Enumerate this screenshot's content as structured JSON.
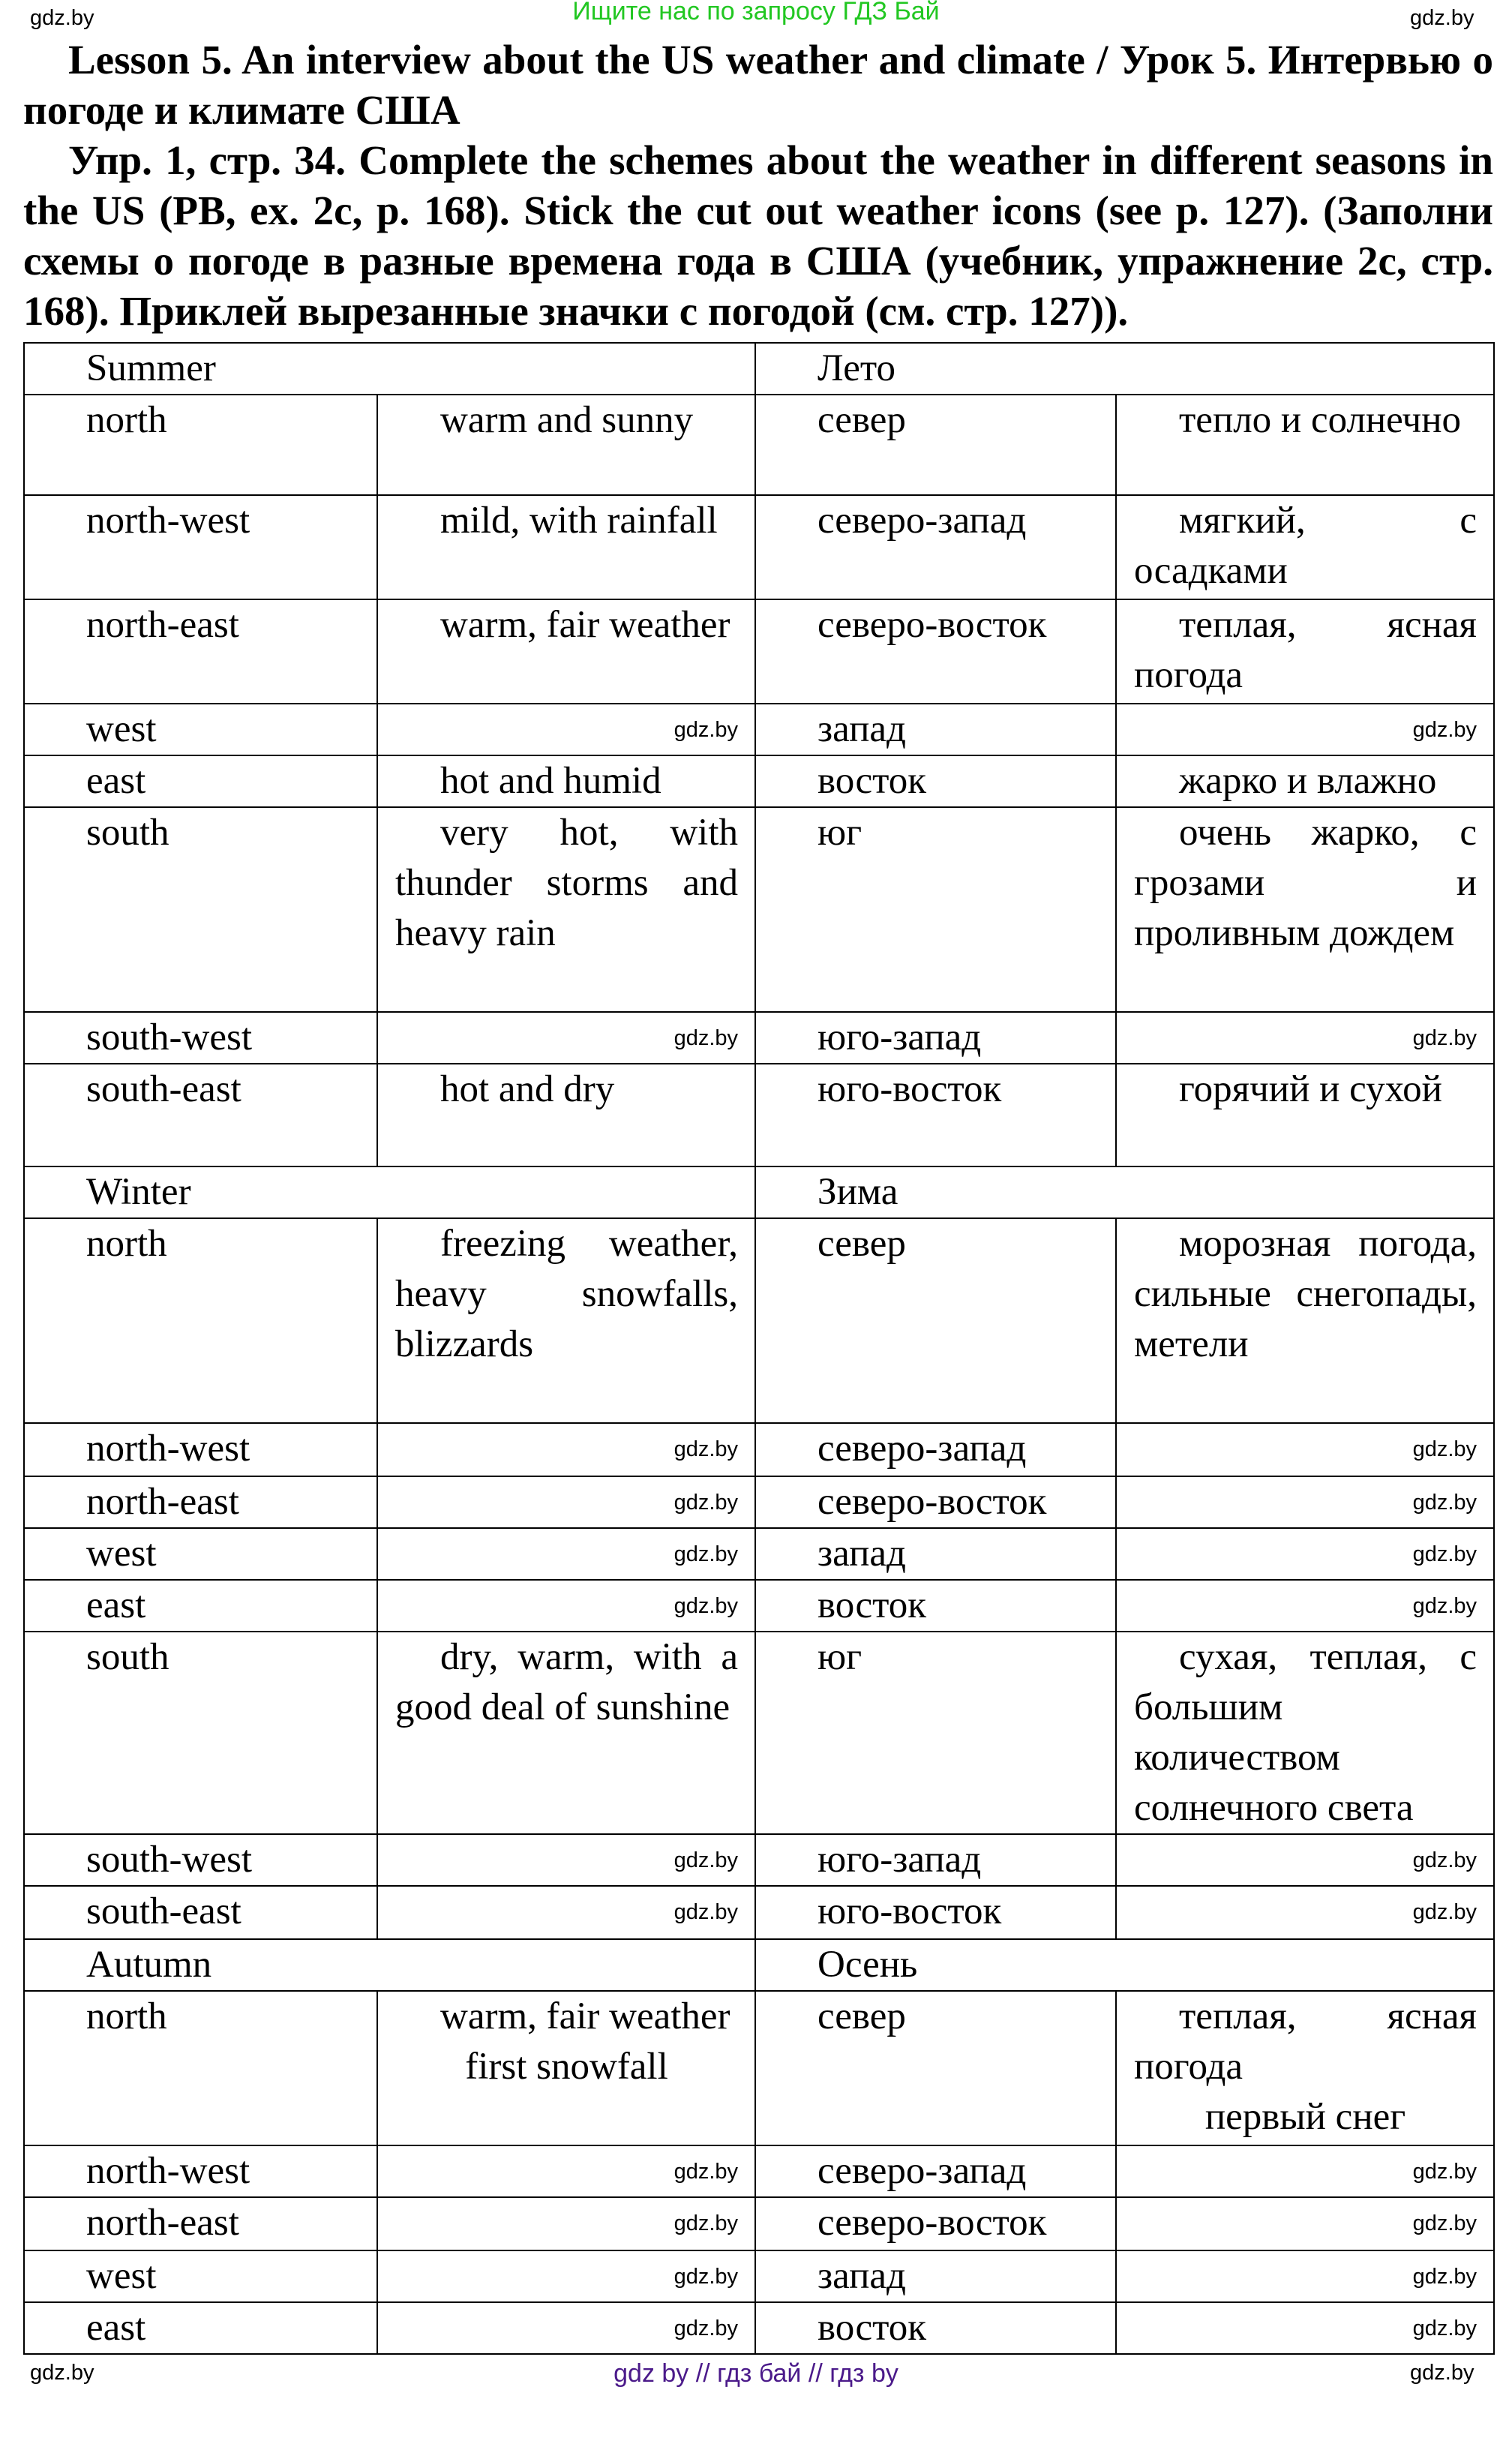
{
  "top_banner": "Ищите нас по запросу ГДЗ Бай",
  "title": {
    "line1": "Lesson 5. An interview about the US weather and climate / Урок 5. Интервью о погоде и климате США",
    "line2": "Упр. 1, стр. 34. Complete the schemes about the weather in different seasons in the US (PB, ex. 2c, p. 168). Stick the cut out weather icons (see p. 127). (Заполни схемы о погоде в разные времена года в США (учебник, упражнение 2c, стр. 168). Приклей вырезанные значки с погодой (см. стр. 127))."
  },
  "seasons": [
    {
      "en": "Summer",
      "ru": "Лето",
      "rows": [
        {
          "en": "north",
          "en_desc": "warm and sunny",
          "ru": "север",
          "ru_desc": "тепло и солнечно"
        },
        {
          "en": "north-west",
          "en_desc": "mild, with rainfall",
          "ru": "северо-запад",
          "ru_desc": "мягкий, с осадками"
        },
        {
          "en": "north-east",
          "en_desc": "warm, fair weather",
          "ru": "северо-восток",
          "ru_desc": "теплая, ясная погода"
        },
        {
          "en": "west",
          "en_desc": "",
          "ru": "запад",
          "ru_desc": ""
        },
        {
          "en": "east",
          "en_desc": "hot and humid",
          "ru": "восток",
          "ru_desc": "жарко и влажно"
        },
        {
          "en": "south",
          "en_desc": "very hot, with thunder storms and heavy rain",
          "ru": "юг",
          "ru_desc": "очень жарко, с грозами и проливным дождем"
        },
        {
          "en": "south-west",
          "en_desc": "",
          "ru": "юго-запад",
          "ru_desc": ""
        },
        {
          "en": "south-east",
          "en_desc": "hot and dry",
          "ru": "юго-восток",
          "ru_desc": "горячий и сухой"
        }
      ]
    },
    {
      "en": "Winter",
      "ru": "Зима",
      "rows": [
        {
          "en": "north",
          "en_desc": "freezing weather, heavy snowfalls, blizzards",
          "ru": "север",
          "ru_desc": "морозная погода, сильные снегопады, метели"
        },
        {
          "en": "north-west",
          "en_desc": "",
          "ru": "северо-запад",
          "ru_desc": ""
        },
        {
          "en": "north-east",
          "en_desc": "",
          "ru": "северо-восток",
          "ru_desc": ""
        },
        {
          "en": "west",
          "en_desc": "",
          "ru": "запад",
          "ru_desc": ""
        },
        {
          "en": "east",
          "en_desc": "",
          "ru": "восток",
          "ru_desc": ""
        },
        {
          "en": "south",
          "en_desc": "dry, warm, with a good deal of sunshine",
          "ru": "юг",
          "ru_desc": "сухая, теплая, с большим количеством солнечного света"
        },
        {
          "en": "south-west",
          "en_desc": "",
          "ru": "юго-запад",
          "ru_desc": ""
        },
        {
          "en": "south-east",
          "en_desc": "",
          "ru": "юго-восток",
          "ru_desc": ""
        }
      ]
    },
    {
      "en": "Autumn",
      "ru": "Осень",
      "rows": [
        {
          "en": "north",
          "en_desc": "warm, fair weather",
          "en_desc2": "first snowfall",
          "ru": "север",
          "ru_desc": "теплая, ясная погода",
          "ru_desc2": "первый снег"
        },
        {
          "en": "north-west",
          "en_desc": "",
          "ru": "северо-запад",
          "ru_desc": ""
        },
        {
          "en": "north-east",
          "en_desc": "",
          "ru": "северо-восток",
          "ru_desc": ""
        },
        {
          "en": "west",
          "en_desc": "",
          "ru": "запад",
          "ru_desc": ""
        },
        {
          "en": "east",
          "en_desc": "",
          "ru": "восток",
          "ru_desc": ""
        }
      ]
    }
  ],
  "watermark": "gdz.by",
  "footer": "gdz by  //  гдз бай  //  гдз by"
}
